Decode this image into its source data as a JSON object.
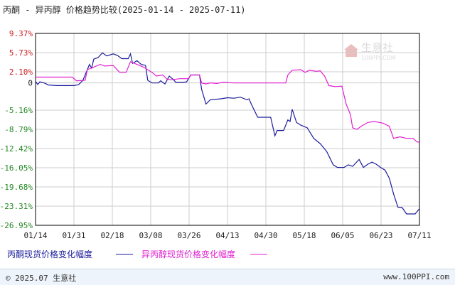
{
  "header": {
    "title": "丙酮 - 异丙醇 价格趋势比较(2025-01-14 - 2025-07-11)"
  },
  "watermark": {
    "text": "生意社",
    "sub": "100PPI.COM"
  },
  "footer": {
    "left": "© 2025.07 生意社",
    "right": "www.100PPI.com"
  },
  "chart_data": {
    "type": "line",
    "title": "丙酮 - 异丙醇 价格趋势比较(2025-01-14 - 2025-07-11)",
    "xlabel": "",
    "ylabel": "",
    "x_ticks": [
      "01/14",
      "01/31",
      "02/18",
      "03/08",
      "03/26",
      "04/13",
      "04/30",
      "05/18",
      "06/05",
      "06/23",
      "07/11"
    ],
    "y_ticks": [
      "9.37%",
      "5.73%",
      "2.10%",
      "0",
      "-5.16%",
      "-8.79%",
      "-12.42%",
      "-16.05%",
      "-19.68%",
      "-23.31%",
      "-26.95%"
    ],
    "y_tick_values": [
      9.37,
      5.73,
      2.1,
      0,
      -5.16,
      -8.79,
      -12.42,
      -16.05,
      -19.68,
      -23.31,
      -26.95
    ],
    "ylim": [
      -26.95,
      9.37
    ],
    "x_range": [
      "2025-01-14",
      "2025-07-11"
    ],
    "grid": true,
    "legend_position": "bottom",
    "colors": {
      "acetone": "#1c1c9c",
      "ipa": "#e020d0",
      "grid": "#cccccc",
      "axis": "#000000"
    },
    "series": [
      {
        "name": "丙酮现货价格变化幅度",
        "points": [
          [
            "2025-01-14",
            0.3
          ],
          [
            "2025-01-15",
            -0.3
          ],
          [
            "2025-01-16",
            0.2
          ],
          [
            "2025-01-18",
            0.0
          ],
          [
            "2025-01-20",
            -0.4
          ],
          [
            "2025-01-24",
            -0.5
          ],
          [
            "2025-01-28",
            -0.5
          ],
          [
            "2025-02-01",
            -0.5
          ],
          [
            "2025-02-03",
            -0.3
          ],
          [
            "2025-02-05",
            0.5
          ],
          [
            "2025-02-07",
            2.5
          ],
          [
            "2025-02-08",
            3.5
          ],
          [
            "2025-02-09",
            2.8
          ],
          [
            "2025-02-10",
            4.5
          ],
          [
            "2025-02-12",
            4.8
          ],
          [
            "2025-02-14",
            5.7
          ],
          [
            "2025-02-16",
            5.1
          ],
          [
            "2025-02-19",
            5.5
          ],
          [
            "2025-02-21",
            5.2
          ],
          [
            "2025-02-23",
            4.6
          ],
          [
            "2025-02-26",
            4.6
          ],
          [
            "2025-02-27",
            5.5
          ],
          [
            "2025-02-28",
            3.7
          ],
          [
            "2025-03-02",
            4.2
          ],
          [
            "2025-03-04",
            3.5
          ],
          [
            "2025-03-06",
            3.3
          ],
          [
            "2025-03-07",
            0.5
          ],
          [
            "2025-03-09",
            0.0
          ],
          [
            "2025-03-12",
            0.0
          ],
          [
            "2025-03-13",
            0.4
          ],
          [
            "2025-03-15",
            -0.2
          ],
          [
            "2025-03-17",
            1.3
          ],
          [
            "2025-03-19",
            0.6
          ],
          [
            "2025-03-20",
            0.1
          ],
          [
            "2025-03-23",
            0.1
          ],
          [
            "2025-03-25",
            0.2
          ],
          [
            "2025-03-27",
            1.5
          ],
          [
            "2025-03-31",
            1.5
          ],
          [
            "2025-04-01",
            -1.2
          ],
          [
            "2025-04-03",
            -4.0
          ],
          [
            "2025-04-05",
            -3.2
          ],
          [
            "2025-04-10",
            -3.0
          ],
          [
            "2025-04-13",
            -2.8
          ],
          [
            "2025-04-16",
            -2.9
          ],
          [
            "2025-04-19",
            -2.7
          ],
          [
            "2025-04-22",
            -3.2
          ],
          [
            "2025-04-23",
            -3.0
          ],
          [
            "2025-04-24",
            -4.0
          ],
          [
            "2025-04-27",
            -6.5
          ],
          [
            "2025-05-03",
            -6.5
          ],
          [
            "2025-05-05",
            -10.0
          ],
          [
            "2025-05-06",
            -9.0
          ],
          [
            "2025-05-09",
            -9.0
          ],
          [
            "2025-05-11",
            -7.0
          ],
          [
            "2025-05-12",
            -7.3
          ],
          [
            "2025-05-13",
            -5.0
          ],
          [
            "2025-05-15",
            -7.5
          ],
          [
            "2025-05-17",
            -8.0
          ],
          [
            "2025-05-20",
            -8.5
          ],
          [
            "2025-05-23",
            -10.5
          ],
          [
            "2025-05-26",
            -11.5
          ],
          [
            "2025-05-29",
            -13.0
          ],
          [
            "2025-06-01",
            -15.5
          ],
          [
            "2025-06-03",
            -16.0
          ],
          [
            "2025-06-06",
            -16.0
          ],
          [
            "2025-06-08",
            -15.5
          ],
          [
            "2025-06-10",
            -15.8
          ],
          [
            "2025-06-13",
            -14.5
          ],
          [
            "2025-06-15",
            -16.0
          ],
          [
            "2025-06-17",
            -15.4
          ],
          [
            "2025-06-19",
            -15.0
          ],
          [
            "2025-06-21",
            -15.4
          ],
          [
            "2025-06-23",
            -16.0
          ],
          [
            "2025-06-25",
            -16.5
          ],
          [
            "2025-06-27",
            -18.0
          ],
          [
            "2025-06-29",
            -21.0
          ],
          [
            "2025-07-01",
            -23.5
          ],
          [
            "2025-07-03",
            -23.6
          ],
          [
            "2025-07-05",
            -24.8
          ],
          [
            "2025-07-09",
            -24.8
          ],
          [
            "2025-07-11",
            -23.8
          ]
        ]
      },
      {
        "name": "异丙醇现货价格变化幅度",
        "points": [
          [
            "2025-01-14",
            1.1
          ],
          [
            "2025-01-31",
            1.1
          ],
          [
            "2025-02-02",
            0.4
          ],
          [
            "2025-02-06",
            0.5
          ],
          [
            "2025-02-07",
            2.5
          ],
          [
            "2025-02-10",
            3.0
          ],
          [
            "2025-02-13",
            3.5
          ],
          [
            "2025-02-15",
            3.2
          ],
          [
            "2025-02-19",
            3.3
          ],
          [
            "2025-02-22",
            2.0
          ],
          [
            "2025-02-25",
            2.0
          ],
          [
            "2025-02-27",
            4.0
          ],
          [
            "2025-03-02",
            3.5
          ],
          [
            "2025-03-05",
            3.0
          ],
          [
            "2025-03-09",
            2.0
          ],
          [
            "2025-03-11",
            1.3
          ],
          [
            "2025-03-14",
            1.5
          ],
          [
            "2025-03-16",
            0.7
          ],
          [
            "2025-03-18",
            0.6
          ],
          [
            "2025-03-22",
            0.8
          ],
          [
            "2025-03-26",
            0.8
          ],
          [
            "2025-03-27",
            1.5
          ],
          [
            "2025-03-31",
            1.5
          ],
          [
            "2025-04-01",
            0.0
          ],
          [
            "2025-04-03",
            -0.2
          ],
          [
            "2025-04-05",
            0.0
          ],
          [
            "2025-04-08",
            -0.1
          ],
          [
            "2025-04-11",
            0.1
          ],
          [
            "2025-04-16",
            0.0
          ],
          [
            "2025-05-10",
            0.0
          ],
          [
            "2025-05-11",
            1.5
          ],
          [
            "2025-05-13",
            2.4
          ],
          [
            "2025-05-17",
            2.5
          ],
          [
            "2025-05-19",
            2.0
          ],
          [
            "2025-05-21",
            2.4
          ],
          [
            "2025-05-24",
            2.2
          ],
          [
            "2025-05-26",
            2.3
          ],
          [
            "2025-05-28",
            1.3
          ],
          [
            "2025-05-30",
            -0.5
          ],
          [
            "2025-06-02",
            -0.7
          ],
          [
            "2025-06-05",
            -0.6
          ],
          [
            "2025-06-07",
            -4.0
          ],
          [
            "2025-06-09",
            -6.0
          ],
          [
            "2025-06-10",
            -8.5
          ],
          [
            "2025-06-12",
            -8.8
          ],
          [
            "2025-06-14",
            -8.2
          ],
          [
            "2025-06-17",
            -7.5
          ],
          [
            "2025-06-20",
            -7.3
          ],
          [
            "2025-06-24",
            -7.6
          ],
          [
            "2025-06-27",
            -8.2
          ],
          [
            "2025-06-29",
            -10.5
          ],
          [
            "2025-07-02",
            -10.2
          ],
          [
            "2025-07-05",
            -10.5
          ],
          [
            "2025-07-08",
            -10.5
          ],
          [
            "2025-07-10",
            -11.2
          ],
          [
            "2025-07-11",
            -11.2
          ]
        ]
      }
    ]
  }
}
